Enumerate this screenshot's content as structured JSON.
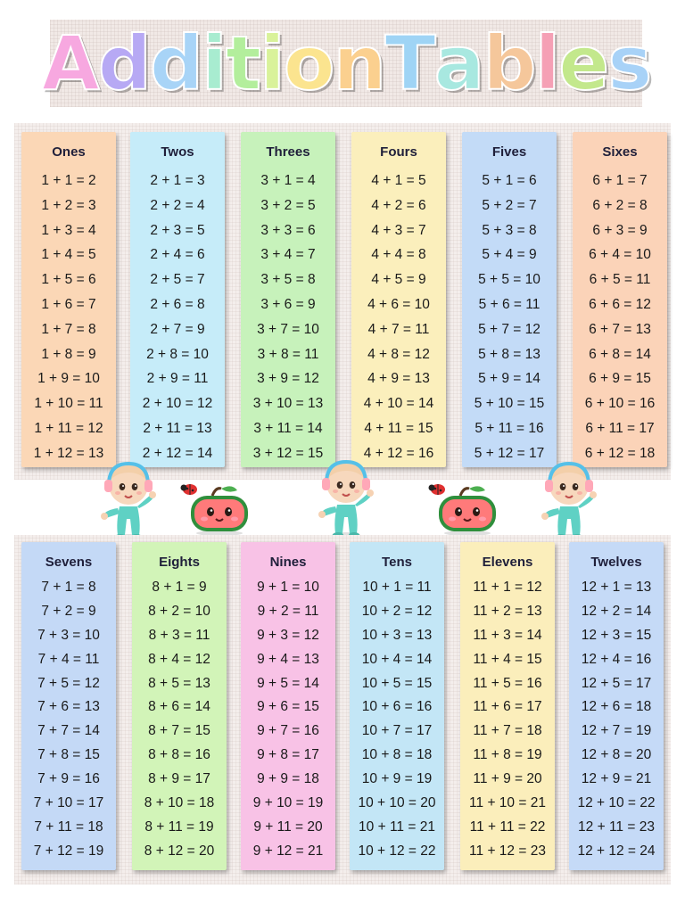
{
  "title": {
    "letters": [
      {
        "ch": "A",
        "color": "#f7a8e0"
      },
      {
        "ch": "d",
        "color": "#b7a9f4"
      },
      {
        "ch": "d",
        "color": "#a8d4f7"
      },
      {
        "ch": "i",
        "color": "#a8ecd0"
      },
      {
        "ch": "t",
        "color": "#b3ee9c"
      },
      {
        "ch": "i",
        "color": "#d9f29a"
      },
      {
        "ch": "o",
        "color": "#fbe48f"
      },
      {
        "ch": "n",
        "color": "#fbd08f"
      },
      {
        "ch": " ",
        "color": "#ffffff"
      },
      {
        "ch": "T",
        "color": "#9fd4f5"
      },
      {
        "ch": "a",
        "color": "#a8e8e0"
      },
      {
        "ch": "b",
        "color": "#f5c79b"
      },
      {
        "ch": "l",
        "color": "#f5a0b5"
      },
      {
        "ch": "e",
        "color": "#c3e88c"
      },
      {
        "ch": "s",
        "color": "#a8d2f7"
      }
    ]
  },
  "tables": [
    {
      "name": "Ones",
      "color": "#fbd7b6",
      "row": "top",
      "equations": [
        "1 + 1 = 2",
        "1 + 2 = 3",
        "1 + 3 = 4",
        "1 + 4 = 5",
        "1 + 5 = 6",
        "1 + 6 = 7",
        "1 + 7 = 8",
        "1 + 8 = 9",
        "1 + 9 = 10",
        "1 + 10 = 11",
        "1 + 11 = 12",
        "1 + 12 = 13"
      ]
    },
    {
      "name": "Twos",
      "color": "#c6ecf9",
      "row": "top",
      "equations": [
        "2 + 1 = 3",
        "2 + 2 = 4",
        "2 + 3 = 5",
        "2 + 4 = 6",
        "2 + 5 = 7",
        "2 + 6 = 8",
        "2 + 7 = 9",
        "2 + 8 = 10",
        "2 + 9 = 11",
        "2 + 10 = 12",
        "2 + 11 = 13",
        "2 + 12 = 14"
      ]
    },
    {
      "name": "Threes",
      "color": "#c7f2bb",
      "row": "top",
      "equations": [
        "3 + 1 = 4",
        "3 + 2 = 5",
        "3 + 3 = 6",
        "3 + 4 = 7",
        "3 + 5 = 8",
        "3 + 6 = 9",
        "3 + 7 = 10",
        "3 + 8 = 11",
        "3 + 9 = 12",
        "3 + 10 = 13",
        "3 + 11 = 14",
        "3 + 12 = 15"
      ]
    },
    {
      "name": "Fours",
      "color": "#fbefbc",
      "row": "top",
      "equations": [
        "4 + 1 = 5",
        "4 + 2 = 6",
        "4 + 3 = 7",
        "4 + 4 = 8",
        "4 + 5 = 9",
        "4 + 6 = 10",
        "4 + 7 = 11",
        "4 + 8 = 12",
        "4 + 9 = 13",
        "4 + 10 = 14",
        "4 + 11 = 15",
        "4 + 12 = 16"
      ]
    },
    {
      "name": "Fives",
      "color": "#c3dbf7",
      "row": "top",
      "equations": [
        "5 + 1 = 6",
        "5 + 2 = 7",
        "5 + 3 = 8",
        "5 + 4 = 9",
        "5 + 5 = 10",
        "5 + 6 = 11",
        "5 + 7 = 12",
        "5 + 8 = 13",
        "5 + 9 = 14",
        "5 + 10 = 15",
        "5 + 11 = 16",
        "5 + 12 = 17"
      ]
    },
    {
      "name": "Sixes",
      "color": "#fbd3b8",
      "row": "top",
      "equations": [
        "6 + 1 = 7",
        "6 + 2 = 8",
        "6 + 3 = 9",
        "6 + 4 = 10",
        "6 + 5 = 11",
        "6 + 6 = 12",
        "6 + 7 = 13",
        "6 + 8 = 14",
        "6 + 9 = 15",
        "6 + 10 = 16",
        "6 + 11 = 17",
        "6 + 12 = 18"
      ]
    },
    {
      "name": "Sevens",
      "color": "#c4d9f6",
      "row": "bottom",
      "equations": [
        "7 + 1 = 8",
        "7 + 2 = 9",
        "7 + 3 = 10",
        "7 + 4 = 11",
        "7 + 5 = 12",
        "7 + 6 = 13",
        "7 + 7 = 14",
        "7 + 8 = 15",
        "7 + 9 = 16",
        "7 + 10 = 17",
        "7 + 11 = 18",
        "7 + 12 = 19"
      ]
    },
    {
      "name": "Eights",
      "color": "#d2f4b8",
      "row": "bottom",
      "equations": [
        "8 + 1 = 9",
        "8 + 2 = 10",
        "8 + 3 = 11",
        "8 + 4 = 12",
        "8 + 5 = 13",
        "8 + 6 = 14",
        "8 + 7 = 15",
        "8 + 8 = 16",
        "8 + 9 = 17",
        "8 + 10 = 18",
        "8 + 11 = 19",
        "8 + 12 = 20"
      ]
    },
    {
      "name": "Nines",
      "color": "#f8c2e6",
      "row": "bottom",
      "equations": [
        "9 + 1 = 10",
        "9 + 2 = 11",
        "9 + 3 = 12",
        "9 + 4 = 13",
        "9 + 5 = 14",
        "9 + 6 = 15",
        "9 + 7 = 16",
        "9 + 8 = 17",
        "9 + 9 = 18",
        "9 + 10 = 19",
        "9 + 11 = 20",
        "9 + 12 = 21"
      ]
    },
    {
      "name": "Tens",
      "color": "#c3e6f6",
      "row": "bottom",
      "equations": [
        "10 + 1 = 11",
        "10 + 2 = 12",
        "10 + 3 = 13",
        "10 + 4 = 14",
        "10 + 5 = 15",
        "10 + 6 = 16",
        "10 + 7 = 17",
        "10 + 8 = 18",
        "10 + 9 = 19",
        "10 + 10 = 20",
        "10 + 11 = 21",
        "10 + 12 = 22"
      ]
    },
    {
      "name": "Elevens",
      "color": "#fbeebb",
      "row": "bottom",
      "equations": [
        "11 + 1 = 12",
        "11 + 2 = 13",
        "11 + 3 = 14",
        "11 + 4 = 15",
        "11 + 5 = 16",
        "11 + 6 = 17",
        "11 + 7 = 18",
        "11 + 8 = 19",
        "11 + 9 = 20",
        "11 + 10 = 21",
        "11 + 11 = 22",
        "11 + 12 = 23"
      ]
    },
    {
      "name": "Twelves",
      "color": "#c5daf7",
      "row": "bottom",
      "equations": [
        "12 + 1 = 13",
        "12 + 2 = 14",
        "12 + 3 = 15",
        "12 + 4 = 16",
        "12 + 5 = 17",
        "12 + 6 = 18",
        "12 + 7 = 19",
        "12 + 8 = 20",
        "12 + 9 = 21",
        "12 + 10 = 22",
        "12 + 11 = 23",
        "12 + 12 = 24"
      ]
    }
  ],
  "decorations": [
    {
      "kind": "baby-character-icon"
    },
    {
      "kind": "watermelon-character-icon"
    },
    {
      "kind": "baby-character-icon"
    },
    {
      "kind": "watermelon-character-icon"
    },
    {
      "kind": "baby-character-icon"
    }
  ]
}
